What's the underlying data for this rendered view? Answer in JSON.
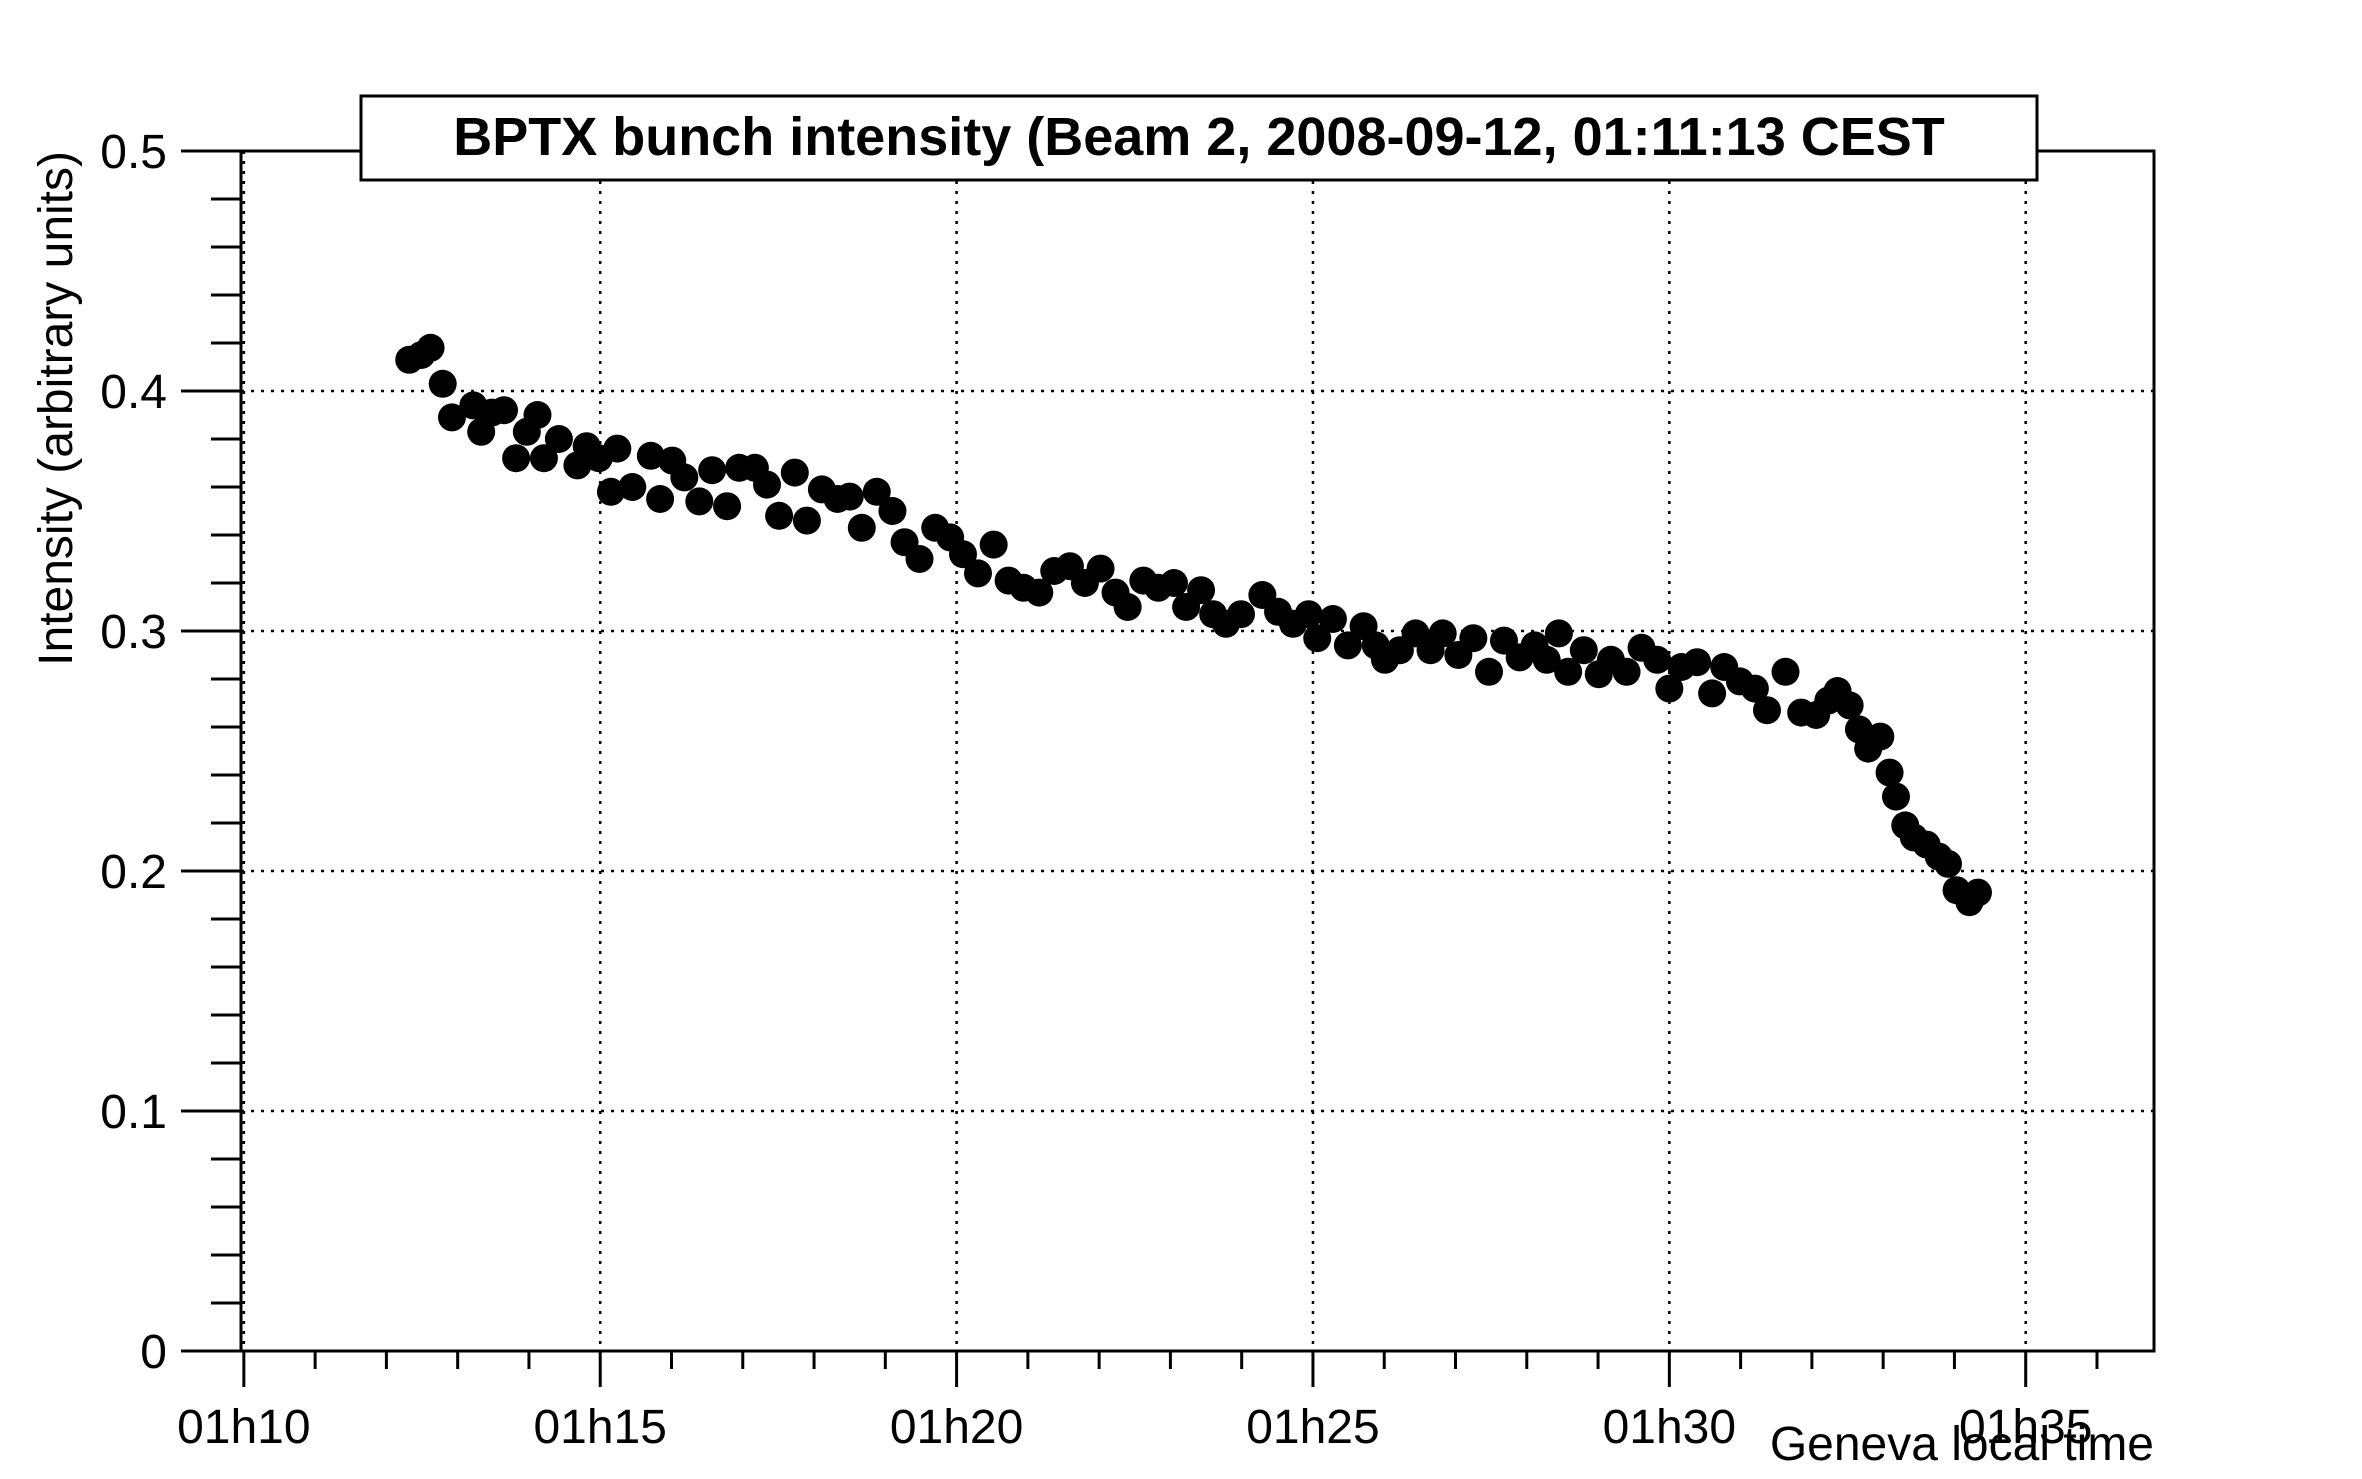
{
  "chart_data": {
    "type": "scatter",
    "title": "BPTX bunch intensity (Beam 2, 2008-09-12, 01:11:13 CEST",
    "x_label": "Geneva local time",
    "y_label": "Intensity (arbitrary units)",
    "color": "#000000",
    "grid": true,
    "xlim": [
      9.96,
      36.8
    ],
    "ylim": [
      0,
      0.5
    ],
    "xticks": [
      {
        "value": 10,
        "label": "01h10"
      },
      {
        "value": 15,
        "label": "01h15"
      },
      {
        "value": 20,
        "label": "01h20"
      },
      {
        "value": 25,
        "label": "01h25"
      },
      {
        "value": 30,
        "label": "01h30"
      },
      {
        "value": 35,
        "label": "01h35"
      }
    ],
    "yticks": [
      0,
      0.1,
      0.2,
      0.3,
      0.4,
      0.5
    ],
    "x": [
      12.32,
      12.49,
      12.62,
      12.79,
      12.92,
      13.22,
      13.33,
      13.48,
      13.65,
      13.82,
      13.97,
      14.12,
      14.21,
      14.42,
      14.68,
      14.81,
      14.98,
      15.15,
      15.24,
      15.45,
      15.71,
      15.84,
      16.01,
      16.18,
      16.39,
      16.57,
      16.78,
      16.95,
      17.17,
      17.34,
      17.51,
      17.73,
      17.9,
      18.11,
      18.33,
      18.5,
      18.67,
      18.88,
      19.1,
      19.27,
      19.48,
      19.7,
      19.91,
      20.09,
      20.3,
      20.52,
      20.73,
      20.94,
      21.16,
      21.37,
      21.59,
      21.8,
      22.02,
      22.23,
      22.4,
      22.62,
      22.83,
      23.05,
      23.22,
      23.43,
      23.6,
      23.78,
      23.99,
      24.29,
      24.51,
      24.72,
      24.94,
      25.06,
      25.28,
      25.49,
      25.71,
      25.88,
      26.01,
      26.22,
      26.44,
      26.65,
      26.82,
      27.04,
      27.25,
      27.47,
      27.68,
      27.9,
      28.11,
      28.28,
      28.45,
      28.58,
      28.8,
      29.01,
      29.18,
      29.4,
      29.61,
      29.83,
      30.0,
      30.17,
      30.39,
      30.6,
      30.77,
      30.99,
      31.2,
      31.37,
      31.63,
      31.85,
      32.06,
      32.23,
      32.36,
      32.53,
      32.66,
      32.79,
      32.96,
      33.09,
      33.18,
      33.31,
      33.43,
      33.61,
      33.78,
      33.91,
      34.03,
      34.21,
      34.33
    ],
    "values": [
      0.413,
      0.415,
      0.418,
      0.403,
      0.389,
      0.394,
      0.383,
      0.391,
      0.392,
      0.372,
      0.383,
      0.39,
      0.372,
      0.38,
      0.369,
      0.377,
      0.372,
      0.358,
      0.376,
      0.36,
      0.373,
      0.355,
      0.371,
      0.364,
      0.354,
      0.367,
      0.352,
      0.368,
      0.368,
      0.361,
      0.348,
      0.366,
      0.346,
      0.359,
      0.355,
      0.356,
      0.343,
      0.358,
      0.35,
      0.337,
      0.33,
      0.343,
      0.339,
      0.332,
      0.324,
      0.336,
      0.321,
      0.318,
      0.316,
      0.325,
      0.327,
      0.32,
      0.326,
      0.316,
      0.31,
      0.321,
      0.318,
      0.32,
      0.31,
      0.317,
      0.307,
      0.303,
      0.307,
      0.315,
      0.308,
      0.303,
      0.307,
      0.297,
      0.305,
      0.294,
      0.302,
      0.294,
      0.288,
      0.292,
      0.299,
      0.292,
      0.299,
      0.29,
      0.297,
      0.283,
      0.296,
      0.289,
      0.294,
      0.288,
      0.299,
      0.283,
      0.292,
      0.282,
      0.288,
      0.283,
      0.293,
      0.288,
      0.276,
      0.285,
      0.287,
      0.274,
      0.285,
      0.279,
      0.276,
      0.267,
      0.283,
      0.266,
      0.265,
      0.271,
      0.275,
      0.269,
      0.259,
      0.251,
      0.256,
      0.241,
      0.231,
      0.219,
      0.214,
      0.211,
      0.206,
      0.203,
      0.192,
      0.187,
      0.191
    ]
  }
}
